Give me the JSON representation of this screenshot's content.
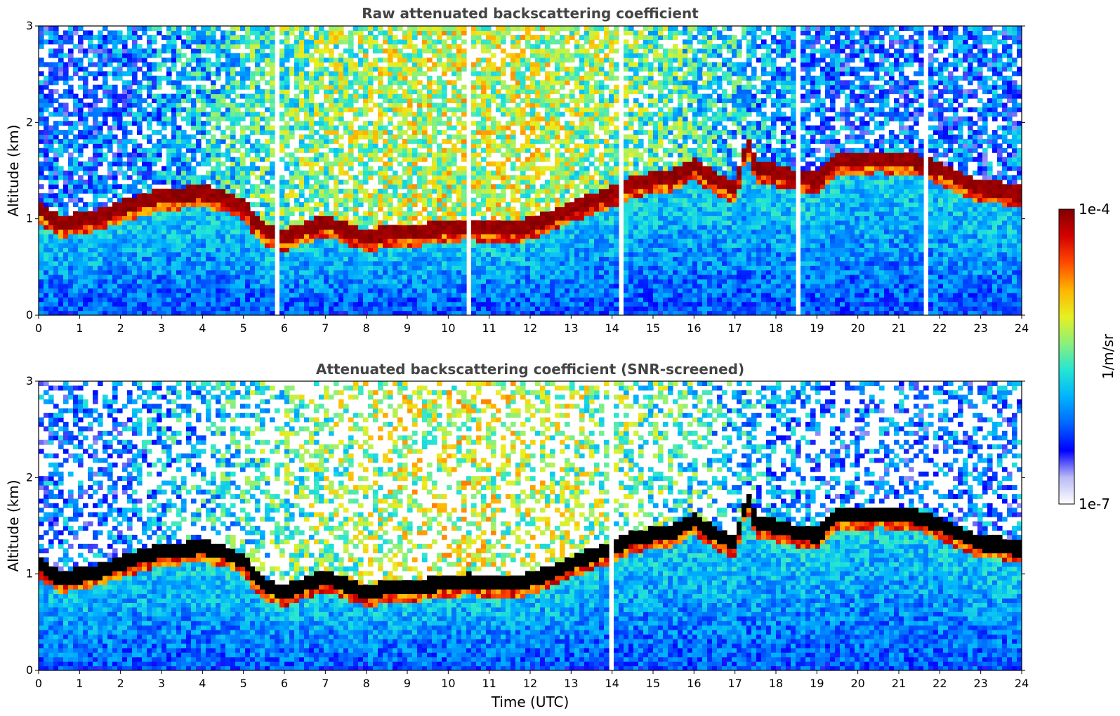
{
  "figure": {
    "colorbar": {
      "label": "1/m/sr",
      "max_label": "1e-4",
      "min_label": "1e-7",
      "scale": "log",
      "range": [
        1e-07,
        0.0001
      ],
      "colormap": [
        "#ffffff",
        "#b9b9f5",
        "#0000ff",
        "#0066ff",
        "#00b3ff",
        "#25e6d3",
        "#8cf07a",
        "#e8f021",
        "#ffb300",
        "#ff4a00",
        "#d40000",
        "#800000"
      ]
    },
    "shared_xlabel": "Time (UTC)"
  },
  "chart_data": [
    {
      "type": "heatmap",
      "title": "Raw attenuated backscattering coefficient",
      "xlabel": "",
      "ylabel": "Altitude (km)",
      "xlim": [
        0,
        24
      ],
      "ylim": [
        0,
        3
      ],
      "xticks": [
        "0",
        "1",
        "2",
        "3",
        "4",
        "5",
        "6",
        "7",
        "8",
        "9",
        "10",
        "11",
        "12",
        "13",
        "14",
        "15",
        "16",
        "17",
        "18",
        "19",
        "20",
        "21",
        "22",
        "23",
        "24"
      ],
      "yticks": [
        "0",
        "1",
        "2",
        "3"
      ],
      "layer_top_km": [
        [
          0,
          1.1
        ],
        [
          0.5,
          0.95
        ],
        [
          1,
          0.97
        ],
        [
          1.5,
          1.02
        ],
        [
          2,
          1.1
        ],
        [
          2.5,
          1.17
        ],
        [
          3,
          1.22
        ],
        [
          3.5,
          1.24
        ],
        [
          4,
          1.26
        ],
        [
          4.5,
          1.22
        ],
        [
          5,
          1.12
        ],
        [
          5.5,
          0.86
        ],
        [
          6,
          0.8
        ],
        [
          6.5,
          0.88
        ],
        [
          7,
          0.95
        ],
        [
          7.5,
          0.88
        ],
        [
          8,
          0.8
        ],
        [
          8.5,
          0.84
        ],
        [
          9,
          0.85
        ],
        [
          9.5,
          0.87
        ],
        [
          10,
          0.9
        ],
        [
          10.5,
          0.92
        ],
        [
          11,
          0.9
        ],
        [
          11.5,
          0.88
        ],
        [
          12,
          0.93
        ],
        [
          12.5,
          1.0
        ],
        [
          13,
          1.1
        ],
        [
          13.5,
          1.18
        ],
        [
          14,
          1.25
        ],
        [
          14.5,
          1.36
        ],
        [
          15,
          1.4
        ],
        [
          15.5,
          1.43
        ],
        [
          16,
          1.55
        ],
        [
          16.5,
          1.4
        ],
        [
          17,
          1.3
        ],
        [
          17.3,
          1.8
        ],
        [
          17.5,
          1.52
        ],
        [
          18,
          1.48
        ],
        [
          18.5,
          1.42
        ],
        [
          19,
          1.38
        ],
        [
          19.5,
          1.6
        ],
        [
          20,
          1.6
        ],
        [
          20.5,
          1.62
        ],
        [
          21,
          1.6
        ],
        [
          21.5,
          1.58
        ],
        [
          22,
          1.5
        ],
        [
          22.5,
          1.4
        ],
        [
          23,
          1.3
        ],
        [
          23.5,
          1.3
        ],
        [
          23.8,
          1.25
        ]
      ]
    },
    {
      "type": "heatmap",
      "title": "Attenuated backscattering coefficient (SNR-screened)",
      "xlabel": "Time (UTC)",
      "ylabel": "Altitude (km)",
      "xlim": [
        0,
        24
      ],
      "ylim": [
        0,
        3
      ],
      "xticks": [
        "0",
        "1",
        "2",
        "3",
        "4",
        "5",
        "6",
        "7",
        "8",
        "9",
        "10",
        "11",
        "12",
        "13",
        "14",
        "15",
        "16",
        "17",
        "18",
        "19",
        "20",
        "21",
        "22",
        "23",
        "24"
      ],
      "yticks": [
        "0",
        "1",
        "2",
        "3"
      ],
      "layer_top_km": [
        [
          0,
          1.1
        ],
        [
          0.5,
          0.95
        ],
        [
          1,
          0.97
        ],
        [
          1.5,
          1.02
        ],
        [
          2,
          1.1
        ],
        [
          2.5,
          1.17
        ],
        [
          3,
          1.22
        ],
        [
          3.5,
          1.24
        ],
        [
          4,
          1.26
        ],
        [
          4.5,
          1.22
        ],
        [
          5,
          1.12
        ],
        [
          5.5,
          0.86
        ],
        [
          6,
          0.8
        ],
        [
          6.5,
          0.88
        ],
        [
          7,
          0.95
        ],
        [
          7.5,
          0.88
        ],
        [
          8,
          0.8
        ],
        [
          8.5,
          0.84
        ],
        [
          9,
          0.85
        ],
        [
          9.5,
          0.87
        ],
        [
          10,
          0.9
        ],
        [
          10.5,
          0.92
        ],
        [
          11,
          0.9
        ],
        [
          11.5,
          0.88
        ],
        [
          12,
          0.93
        ],
        [
          12.5,
          1.0
        ],
        [
          13,
          1.1
        ],
        [
          13.5,
          1.18
        ],
        [
          14,
          1.25
        ],
        [
          14.5,
          1.36
        ],
        [
          15,
          1.4
        ],
        [
          15.5,
          1.43
        ],
        [
          16,
          1.55
        ],
        [
          16.5,
          1.4
        ],
        [
          17,
          1.3
        ],
        [
          17.3,
          1.8
        ],
        [
          17.5,
          1.52
        ],
        [
          18,
          1.48
        ],
        [
          18.5,
          1.42
        ],
        [
          19,
          1.38
        ],
        [
          19.5,
          1.6
        ],
        [
          20,
          1.6
        ],
        [
          20.5,
          1.62
        ],
        [
          21,
          1.6
        ],
        [
          21.5,
          1.58
        ],
        [
          22,
          1.5
        ],
        [
          22.5,
          1.4
        ],
        [
          23,
          1.3
        ],
        [
          23.5,
          1.3
        ],
        [
          23.8,
          1.25
        ]
      ]
    }
  ]
}
